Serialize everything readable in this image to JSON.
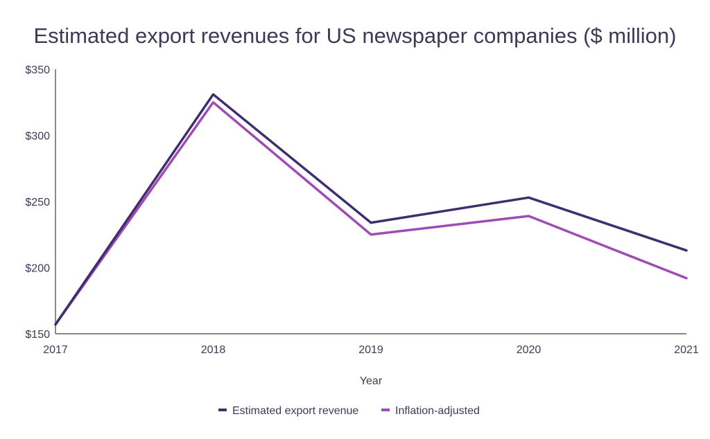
{
  "chart_data": {
    "type": "line",
    "title": "Estimated export revenues for US newspaper companies ($ million)",
    "xlabel": "Year",
    "ylabel": "",
    "categories": [
      "2017",
      "2018",
      "2019",
      "2020",
      "2021"
    ],
    "ylim": [
      150,
      350
    ],
    "yticks": [
      150,
      200,
      250,
      300,
      350
    ],
    "ytick_labels": [
      "$150",
      "$200",
      "$250",
      "$300",
      "$350"
    ],
    "grid": false,
    "legend_position": "bottom-center",
    "series": [
      {
        "name": "Estimated export revenue",
        "color": "#3f2d6e",
        "values": [
          157,
          331,
          234,
          253,
          213
        ]
      },
      {
        "name": "Inflation-adjusted",
        "color": "#a04bb3",
        "values": [
          157,
          325,
          225,
          239,
          192
        ]
      }
    ]
  }
}
